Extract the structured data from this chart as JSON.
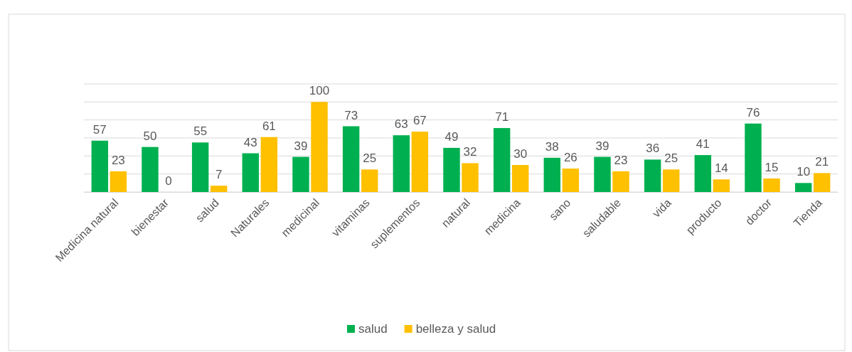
{
  "chart_data": {
    "type": "bar",
    "categories": [
      "Medicina natural",
      "bienestar",
      "salud",
      "Naturales",
      "medicinal",
      "vitaminas",
      "suplementos",
      "natural",
      "medicina",
      "sano",
      "saludable",
      "vida",
      "producto",
      "doctor",
      "Tienda"
    ],
    "series": [
      {
        "name": "salud",
        "color": "#00b050",
        "values": [
          57,
          50,
          55,
          43,
          39,
          73,
          63,
          49,
          71,
          38,
          39,
          36,
          41,
          76,
          10
        ]
      },
      {
        "name": "belleza y salud",
        "color": "#ffc000",
        "values": [
          23,
          0,
          7,
          61,
          100,
          25,
          67,
          32,
          30,
          26,
          23,
          25,
          14,
          15,
          21
        ]
      }
    ],
    "ylim": [
      0,
      120
    ],
    "yticks": [
      {
        "value": 0,
        "label": null
      },
      {
        "value": 20,
        "label": null
      },
      {
        "value": 40,
        "label": null
      },
      {
        "value": 60,
        "label": null
      },
      {
        "value": 80,
        "label": null
      },
      {
        "value": 100,
        "label": null
      },
      {
        "value": 120,
        "label": null
      }
    ],
    "tick_labels": "x",
    "grid": "y",
    "data_labels": true,
    "legend": "bottom"
  }
}
